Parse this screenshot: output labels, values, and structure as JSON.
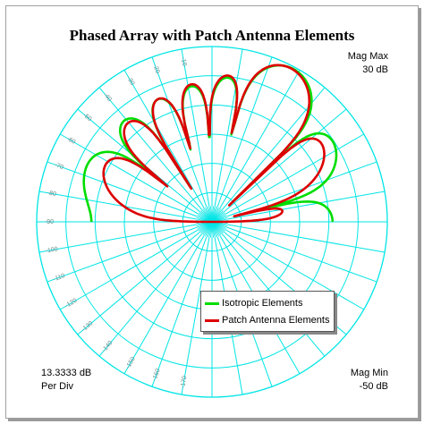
{
  "chart_data": {
    "type": "polar",
    "title": "Phased Array with Patch Antenna Elements",
    "mag_max_label": "Mag Max",
    "mag_max_value": "30 dB",
    "mag_min_label": "Mag Min",
    "mag_min_value": "-50 dB",
    "per_div_value": "13.3333 dB",
    "per_div_label": "Per Div",
    "r_min_db": -50,
    "r_max_db": 30,
    "rings": 6,
    "spoke_step_deg": 10,
    "angle_tick_labels": [
      "-10",
      "-20",
      "-30",
      "-40",
      "-50",
      "-60",
      "-70",
      "-80",
      "-90",
      "-100",
      "-110",
      "-120",
      "-130",
      "-140",
      "-150",
      "-160",
      "-170"
    ],
    "grid_color": "#00e5e5",
    "series": [
      {
        "name": "Isotropic Elements",
        "color": "#00dd00",
        "main_beam_deg": 28,
        "peak_db": 29
      },
      {
        "name": "Patch Antenna Elements",
        "color": "#dd0000",
        "main_beam_deg": 28,
        "peak_db": 30
      }
    ]
  },
  "legend": {
    "items": [
      {
        "label": "Isotropic Elements",
        "color": "#00dd00"
      },
      {
        "label": "Patch Antenna Elements",
        "color": "#dd0000"
      }
    ]
  }
}
